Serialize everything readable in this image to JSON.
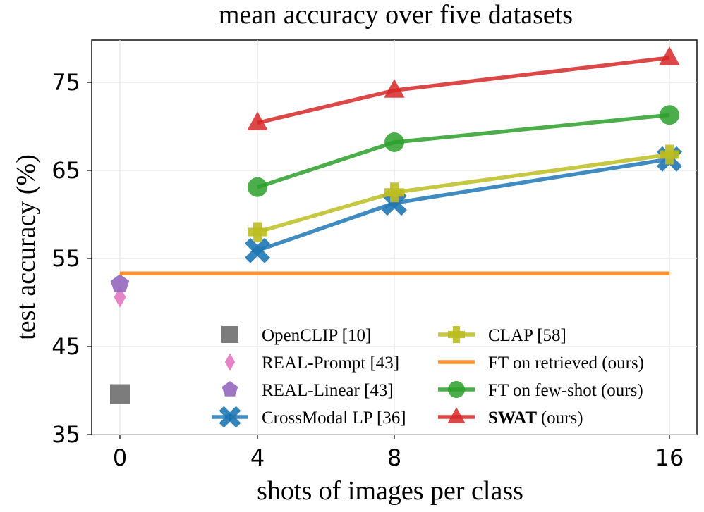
{
  "chart_data": {
    "type": "line",
    "title": "mean accuracy over five datasets",
    "xlabel": "shots of images per class",
    "ylabel": "test accuracy (%)",
    "xticks": [
      "0",
      "4",
      "8",
      "16"
    ],
    "x": [
      0,
      4,
      8,
      16
    ],
    "yticks": [
      "35",
      "45",
      "55",
      "65",
      "75"
    ],
    "ylim": [
      35,
      80
    ],
    "grid": true,
    "legend": {
      "placement": "lower-center",
      "columns": 2
    },
    "series": [
      {
        "name": "OpenCLIP [10]",
        "marker": "square",
        "color": "#6e6e6e",
        "points": [
          [
            0,
            39.6
          ]
        ]
      },
      {
        "name": "REAL-Prompt [43]",
        "marker": "thin-diamond",
        "color": "#e377c2",
        "points": [
          [
            0,
            50.6
          ]
        ]
      },
      {
        "name": "REAL-Linear [43]",
        "marker": "pentagon",
        "color": "#9467bd",
        "points": [
          [
            0,
            52.1
          ]
        ]
      },
      {
        "name": "CrossModal LP [36]",
        "marker": "x",
        "color": "#1f77b4",
        "points": [
          [
            4,
            55.9
          ],
          [
            8,
            61.3
          ],
          [
            16,
            66.3
          ]
        ]
      },
      {
        "name": "CLAP [58]",
        "marker": "plus",
        "color": "#bcbd22",
        "points": [
          [
            4,
            58.0
          ],
          [
            8,
            62.5
          ],
          [
            16,
            66.8
          ]
        ]
      },
      {
        "name": "FT on retrieved (ours)",
        "marker": "none",
        "color": "#ff7f0e",
        "points": [
          [
            0,
            53.3
          ],
          [
            16,
            53.3
          ]
        ]
      },
      {
        "name": "FT on few-shot (ours)",
        "marker": "circle",
        "color": "#2ca02c",
        "points": [
          [
            4,
            63.1
          ],
          [
            8,
            68.2
          ],
          [
            16,
            71.3
          ]
        ]
      },
      {
        "name": "(ours)",
        "name_bold": "SWAT",
        "marker": "triangle",
        "color": "#d62728",
        "points": [
          [
            4,
            70.4
          ],
          [
            8,
            74.1
          ],
          [
            16,
            77.8
          ]
        ]
      }
    ]
  }
}
